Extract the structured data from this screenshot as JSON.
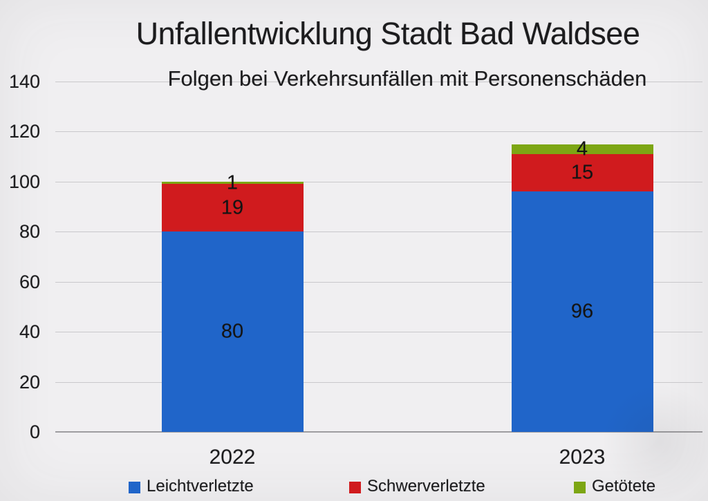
{
  "title": "Unfallentwicklung Stadt Bad Waldsee",
  "subtitle": "Folgen bei Verkehrsunfällen mit Personenschäden",
  "chart_data": {
    "type": "bar",
    "stacked": true,
    "title": "Unfallentwicklung Stadt Bad Waldsee",
    "subtitle": "Folgen bei Verkehrsunfällen mit Personenschäden",
    "categories": [
      "2022",
      "2023"
    ],
    "series": [
      {
        "name": "Leichtverletzte",
        "color": "#2065c9",
        "values": [
          80,
          96
        ]
      },
      {
        "name": "Schwerverletzte",
        "color": "#d01b1e",
        "values": [
          19,
          15
        ]
      },
      {
        "name": "Getötete",
        "color": "#7da614",
        "values": [
          1,
          4
        ]
      }
    ],
    "totals": [
      100,
      115
    ],
    "ylim": [
      0,
      140
    ],
    "yticks": [
      0,
      20,
      40,
      60,
      80,
      100,
      120,
      140
    ],
    "grid": true,
    "legend_position": "bottom",
    "colors": {
      "background": "#f0eff1",
      "gridline": "#c9c8cb",
      "axis_line": "#9e9da0",
      "text": "#1c1c1e"
    }
  }
}
